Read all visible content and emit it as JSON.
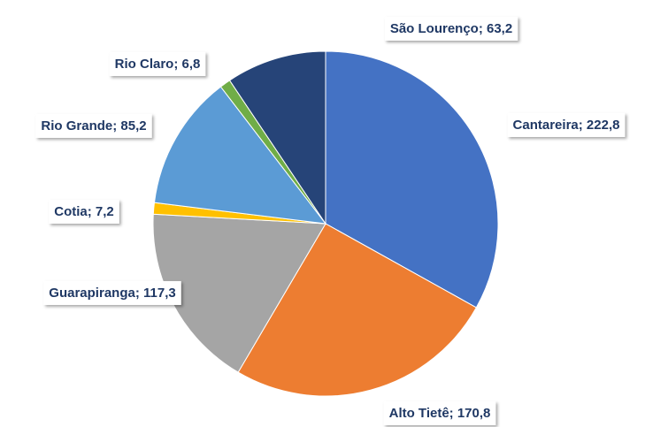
{
  "chart_data": {
    "type": "pie",
    "categories": [
      "Cantareira",
      "Alto Tietê",
      "Guarapiranga",
      "Cotia",
      "Rio Grande",
      "Rio Claro",
      "São Lourenço"
    ],
    "values": [
      222.8,
      170.8,
      117.3,
      7.2,
      85.2,
      6.8,
      63.2
    ],
    "value_labels": [
      "Cantareira; 222,8",
      "Alto Tietê; 170,8",
      "Guarapiranga; 117,3",
      "Cotia; 7,2",
      "Rio Grande; 85,2",
      "Rio Claro; 6,8",
      "São Lourenço; 63,2"
    ],
    "colors": [
      "#4472c4",
      "#ed7d31",
      "#a5a5a5",
      "#ffc000",
      "#5b9bd5",
      "#70ad47",
      "#264478"
    ]
  }
}
